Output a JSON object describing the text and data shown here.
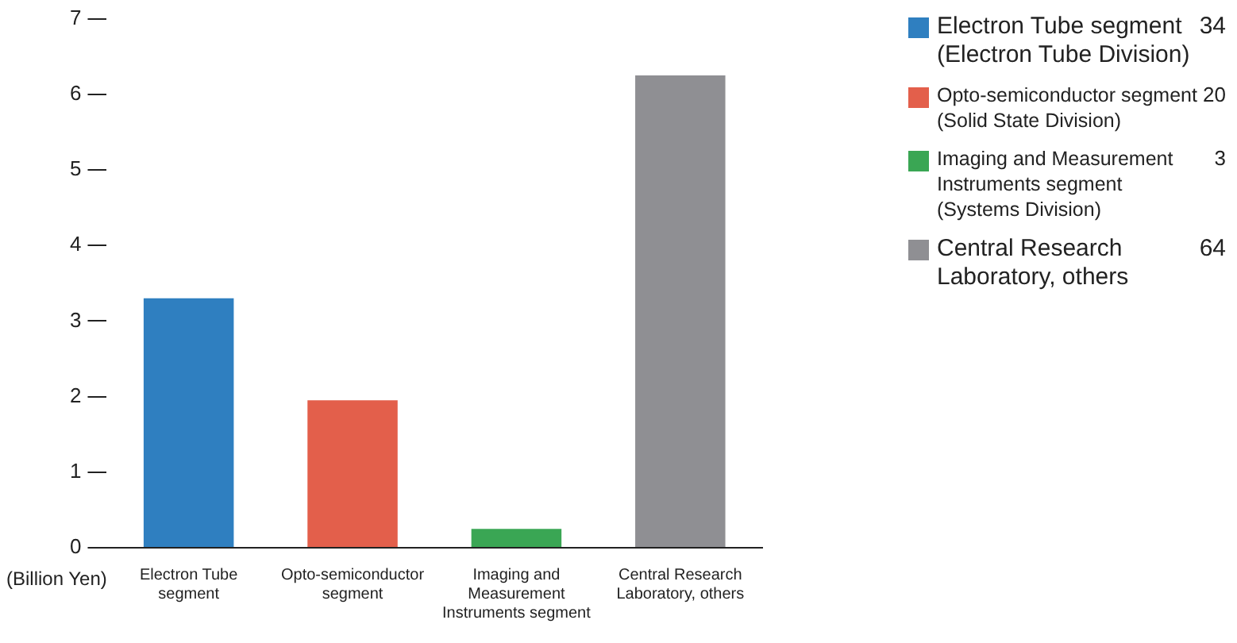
{
  "chart_data": {
    "type": "bar",
    "ylabel": "(Billion Yen)",
    "categories": [
      "Electron Tube\nsegment",
      "Opto-semiconductor\nsegment",
      "Imaging and\nMeasurement\nInstruments segment",
      "Central Research\nLaboratory, others"
    ],
    "series": [
      {
        "name": "Electron Tube segment\n(Electron Tube Division)",
        "color": "#2f7fc0",
        "values": [
          3.3,
          null,
          null,
          null
        ]
      },
      {
        "name": "Opto-semiconductor segment\n(Solid State Division)",
        "color": "#e35f4b",
        "values": [
          null,
          1.95,
          null,
          null
        ]
      },
      {
        "name": "Imaging and Measurement\nInstruments segment\n(Systems Division)",
        "color": "#3aa654",
        "values": [
          null,
          null,
          0.25,
          null
        ]
      },
      {
        "name": "Central Research\nLaboratory, others",
        "color": "#8f8f93",
        "values": [
          null,
          null,
          null,
          6.25
        ]
      }
    ],
    "annotations": [
      "34",
      "20",
      "3",
      "64"
    ],
    "ylim": [
      0,
      7
    ],
    "yticks": [
      0,
      1,
      2,
      3,
      4,
      5,
      6,
      7
    ],
    "grid": false,
    "legend": "right"
  }
}
